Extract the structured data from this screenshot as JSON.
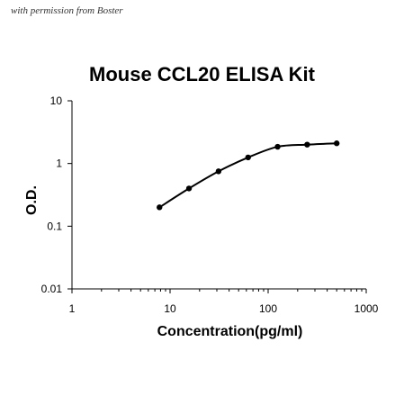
{
  "watermark": "with permission from Boster",
  "chart_data": {
    "type": "line",
    "title": "Mouse CCL20 ELISA Kit",
    "xlabel": "Concentration(pg/ml)",
    "ylabel": "O.D.",
    "xscale": "log",
    "yscale": "log",
    "xlim": [
      1,
      1000
    ],
    "ylim": [
      0.01,
      10
    ],
    "x_ticks": [
      "1",
      "10",
      "100",
      "1000"
    ],
    "y_ticks": [
      "0.01",
      "0.1",
      "1",
      "10"
    ],
    "grid": false,
    "legend": "none",
    "colors": {
      "line": "#000000",
      "marker": "#000000"
    },
    "series": [
      {
        "x": [
          7.8,
          15.6,
          31.2,
          62.5,
          125,
          250,
          500
        ],
        "y": [
          0.2,
          0.4,
          0.75,
          1.25,
          1.85,
          2.0,
          2.1
        ]
      }
    ]
  }
}
